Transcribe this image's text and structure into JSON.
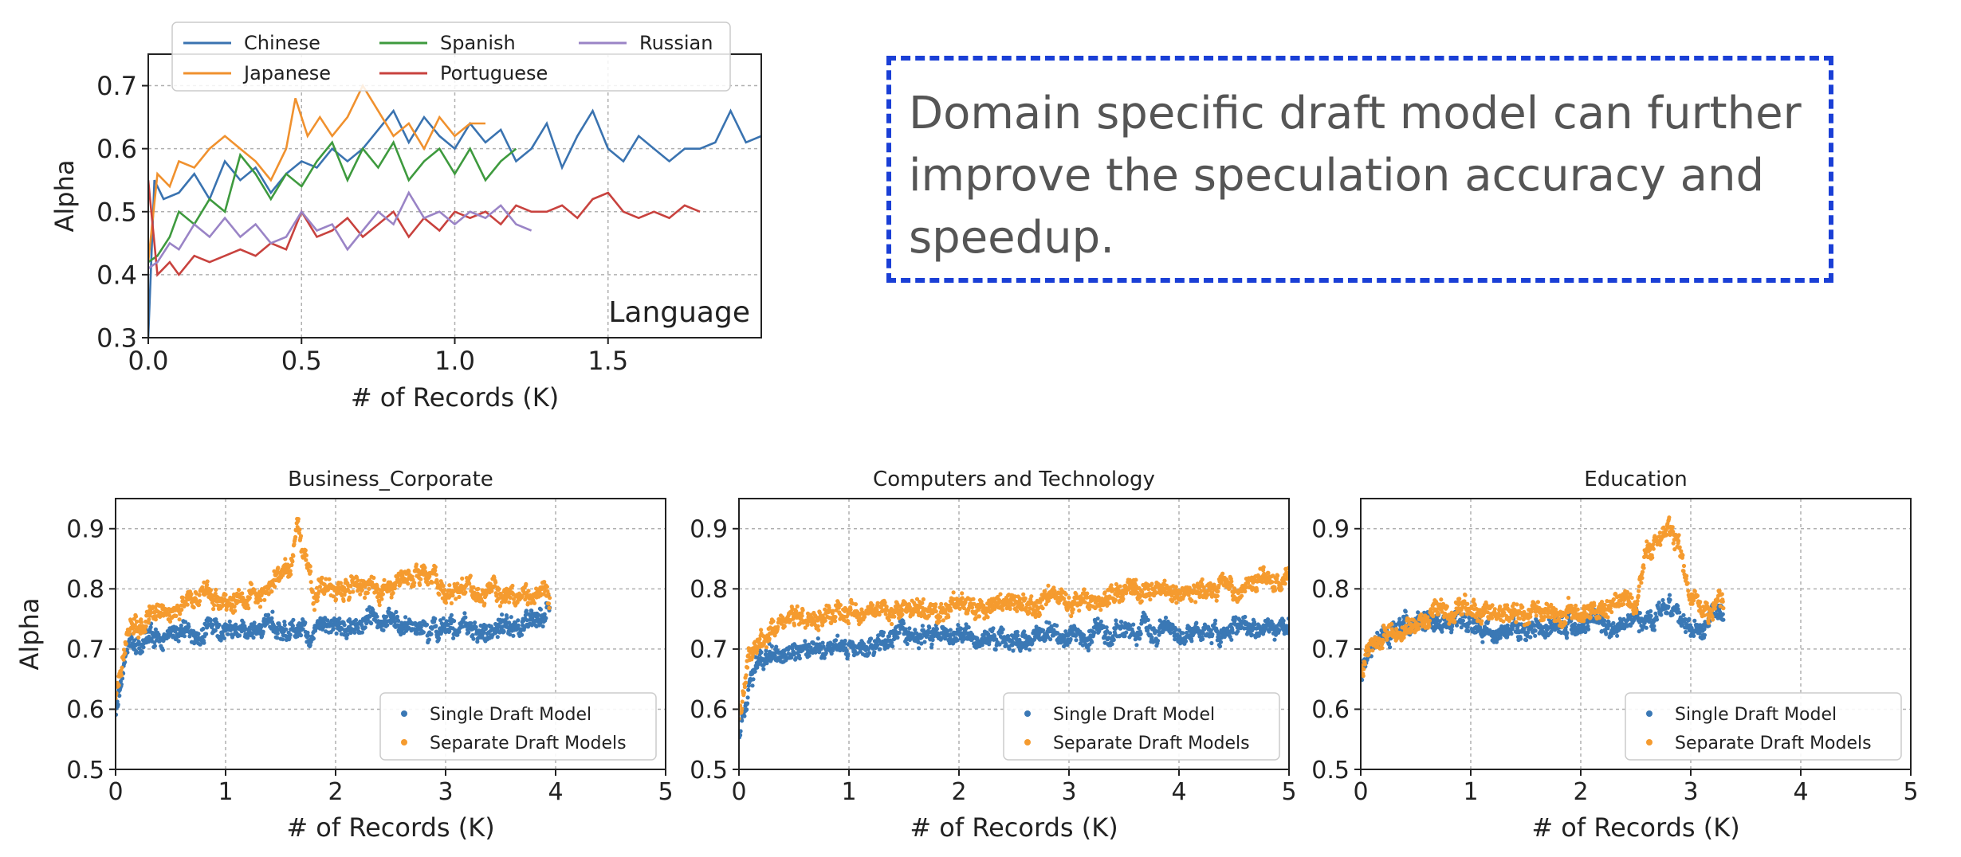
{
  "callout": {
    "text": "Domain specific draft model can further improve the speculation accuracy and speedup."
  },
  "colors": {
    "chinese": "#3a73b0",
    "japanese": "#f0912e",
    "spanish": "#3e9a3e",
    "portuguese": "#c8423e",
    "russian": "#9a84c6",
    "single": "#3a78b5",
    "separate": "#f59b2f",
    "callout_border": "#1a3fd6"
  },
  "chart_data": [
    {
      "type": "line",
      "label": "Language",
      "xlabel": "# of Records (K)",
      "ylabel": "Alpha",
      "xlim": [
        0,
        2.0
      ],
      "ylim": [
        0.3,
        0.75
      ],
      "xticks": [
        "0.0",
        "0.5",
        "1.0",
        "1.5"
      ],
      "xtick_values": [
        0,
        0.5,
        1.0,
        1.5
      ],
      "yticks": [
        "0.3",
        "0.4",
        "0.5",
        "0.6",
        "0.7"
      ],
      "ytick_values": [
        0.3,
        0.4,
        0.5,
        0.6,
        0.7
      ],
      "grid": true,
      "legend_position": "top",
      "series": [
        {
          "name": "Chinese",
          "color": "#3a73b0",
          "x": [
            0.0,
            0.02,
            0.05,
            0.1,
            0.15,
            0.2,
            0.25,
            0.3,
            0.35,
            0.4,
            0.45,
            0.5,
            0.55,
            0.6,
            0.65,
            0.7,
            0.75,
            0.8,
            0.85,
            0.9,
            0.95,
            1.0,
            1.05,
            1.1,
            1.15,
            1.2,
            1.25,
            1.3,
            1.35,
            1.4,
            1.45,
            1.5,
            1.55,
            1.6,
            1.65,
            1.7,
            1.75,
            1.8,
            1.85,
            1.9,
            1.95,
            2.0
          ],
          "y": [
            0.3,
            0.55,
            0.52,
            0.53,
            0.56,
            0.52,
            0.58,
            0.55,
            0.57,
            0.53,
            0.56,
            0.58,
            0.57,
            0.6,
            0.58,
            0.6,
            0.63,
            0.66,
            0.61,
            0.65,
            0.62,
            0.6,
            0.64,
            0.61,
            0.63,
            0.58,
            0.6,
            0.64,
            0.57,
            0.62,
            0.66,
            0.6,
            0.58,
            0.62,
            0.6,
            0.58,
            0.6,
            0.6,
            0.61,
            0.66,
            0.61,
            0.62
          ]
        },
        {
          "name": "Japanese",
          "color": "#f0912e",
          "x": [
            0.0,
            0.03,
            0.07,
            0.1,
            0.15,
            0.2,
            0.25,
            0.3,
            0.35,
            0.4,
            0.45,
            0.48,
            0.52,
            0.56,
            0.6,
            0.65,
            0.7,
            0.75,
            0.8,
            0.85,
            0.9,
            0.95,
            1.0,
            1.05,
            1.1
          ],
          "y": [
            0.42,
            0.56,
            0.54,
            0.58,
            0.57,
            0.6,
            0.62,
            0.6,
            0.58,
            0.55,
            0.6,
            0.68,
            0.62,
            0.65,
            0.62,
            0.65,
            0.7,
            0.66,
            0.62,
            0.64,
            0.6,
            0.65,
            0.62,
            0.64,
            0.64
          ]
        },
        {
          "name": "Spanish",
          "color": "#3e9a3e",
          "x": [
            0.0,
            0.03,
            0.07,
            0.1,
            0.15,
            0.2,
            0.25,
            0.3,
            0.35,
            0.4,
            0.45,
            0.5,
            0.55,
            0.6,
            0.65,
            0.7,
            0.75,
            0.8,
            0.85,
            0.9,
            0.95,
            1.0,
            1.05,
            1.1,
            1.15,
            1.2
          ],
          "y": [
            0.42,
            0.43,
            0.46,
            0.5,
            0.48,
            0.52,
            0.5,
            0.59,
            0.56,
            0.52,
            0.56,
            0.54,
            0.58,
            0.61,
            0.55,
            0.6,
            0.57,
            0.61,
            0.55,
            0.58,
            0.6,
            0.56,
            0.6,
            0.55,
            0.58,
            0.6
          ]
        },
        {
          "name": "Portuguese",
          "color": "#c8423e",
          "x": [
            0.0,
            0.03,
            0.07,
            0.1,
            0.15,
            0.2,
            0.25,
            0.3,
            0.35,
            0.4,
            0.45,
            0.5,
            0.55,
            0.6,
            0.65,
            0.7,
            0.75,
            0.8,
            0.85,
            0.9,
            0.95,
            1.0,
            1.05,
            1.1,
            1.15,
            1.2,
            1.25,
            1.3,
            1.35,
            1.4,
            1.45,
            1.5,
            1.55,
            1.6,
            1.65,
            1.7,
            1.75,
            1.8
          ],
          "y": [
            0.55,
            0.4,
            0.42,
            0.4,
            0.43,
            0.42,
            0.43,
            0.44,
            0.43,
            0.45,
            0.44,
            0.5,
            0.46,
            0.47,
            0.49,
            0.46,
            0.48,
            0.5,
            0.46,
            0.49,
            0.47,
            0.5,
            0.49,
            0.5,
            0.48,
            0.51,
            0.5,
            0.5,
            0.51,
            0.49,
            0.52,
            0.53,
            0.5,
            0.49,
            0.5,
            0.49,
            0.51,
            0.5
          ]
        },
        {
          "name": "Russian",
          "color": "#9a84c6",
          "x": [
            0.0,
            0.03,
            0.07,
            0.1,
            0.15,
            0.2,
            0.25,
            0.3,
            0.35,
            0.4,
            0.45,
            0.5,
            0.55,
            0.6,
            0.65,
            0.7,
            0.75,
            0.8,
            0.85,
            0.9,
            0.95,
            1.0,
            1.05,
            1.1,
            1.15,
            1.2,
            1.25
          ],
          "y": [
            0.41,
            0.42,
            0.45,
            0.44,
            0.48,
            0.46,
            0.49,
            0.46,
            0.48,
            0.45,
            0.46,
            0.5,
            0.47,
            0.48,
            0.44,
            0.47,
            0.5,
            0.48,
            0.53,
            0.49,
            0.5,
            0.48,
            0.5,
            0.49,
            0.51,
            0.48,
            0.47
          ]
        }
      ]
    },
    {
      "type": "scatter",
      "title": "Business_Corporate",
      "xlabel": "# of Records (K)",
      "ylabel": "Alpha",
      "xlim": [
        0,
        5
      ],
      "ylim": [
        0.5,
        0.95
      ],
      "xticks": [
        "0",
        "1",
        "2",
        "3",
        "4",
        "5"
      ],
      "xtick_values": [
        0,
        1,
        2,
        3,
        4,
        5
      ],
      "yticks": [
        "0.5",
        "0.6",
        "0.7",
        "0.8",
        "0.9"
      ],
      "ytick_values": [
        0.5,
        0.6,
        0.7,
        0.8,
        0.9
      ],
      "grid": true,
      "legend_position": "bottom-right",
      "series": [
        {
          "name": "Single Draft Model",
          "color": "#3a78b5",
          "x": [
            0.0,
            0.1,
            0.3,
            0.5,
            0.8,
            1.0,
            1.2,
            1.4,
            1.6,
            1.8,
            2.0,
            2.2,
            2.4,
            2.6,
            2.8,
            3.0,
            3.2,
            3.4,
            3.6,
            3.8,
            3.95
          ],
          "y": [
            0.6,
            0.7,
            0.72,
            0.72,
            0.73,
            0.73,
            0.73,
            0.74,
            0.74,
            0.73,
            0.74,
            0.74,
            0.75,
            0.75,
            0.73,
            0.74,
            0.73,
            0.73,
            0.74,
            0.74,
            0.76
          ]
        },
        {
          "name": "Separate Draft Models",
          "color": "#f59b2f",
          "x": [
            0.0,
            0.1,
            0.3,
            0.5,
            0.8,
            1.0,
            1.2,
            1.4,
            1.6,
            1.65,
            1.8,
            2.0,
            2.2,
            2.4,
            2.6,
            2.8,
            3.0,
            3.2,
            3.4,
            3.6,
            3.8,
            3.95
          ],
          "y": [
            0.62,
            0.73,
            0.75,
            0.77,
            0.79,
            0.78,
            0.79,
            0.8,
            0.84,
            0.92,
            0.8,
            0.8,
            0.81,
            0.8,
            0.82,
            0.82,
            0.8,
            0.8,
            0.79,
            0.79,
            0.79,
            0.78
          ]
        }
      ]
    },
    {
      "type": "scatter",
      "title": "Computers and Technology",
      "xlabel": "# of Records (K)",
      "ylabel": "",
      "xlim": [
        0,
        5
      ],
      "ylim": [
        0.5,
        0.95
      ],
      "xticks": [
        "0",
        "1",
        "2",
        "3",
        "4",
        "5"
      ],
      "xtick_values": [
        0,
        1,
        2,
        3,
        4,
        5
      ],
      "yticks": [
        "0.5",
        "0.6",
        "0.7",
        "0.8",
        "0.9"
      ],
      "ytick_values": [
        0.5,
        0.6,
        0.7,
        0.8,
        0.9
      ],
      "grid": true,
      "legend_position": "bottom-right",
      "series": [
        {
          "name": "Single Draft Model",
          "color": "#3a78b5",
          "x": [
            0.0,
            0.1,
            0.3,
            0.5,
            0.8,
            1.0,
            1.3,
            1.6,
            2.0,
            2.3,
            2.6,
            3.0,
            3.3,
            3.6,
            4.0,
            4.3,
            4.6,
            5.0
          ],
          "y": [
            0.56,
            0.66,
            0.7,
            0.7,
            0.71,
            0.71,
            0.71,
            0.72,
            0.72,
            0.72,
            0.72,
            0.73,
            0.73,
            0.73,
            0.73,
            0.73,
            0.73,
            0.73
          ]
        },
        {
          "name": "Separate Draft Models",
          "color": "#f59b2f",
          "x": [
            0.0,
            0.1,
            0.3,
            0.5,
            0.8,
            1.0,
            1.3,
            1.6,
            2.0,
            2.3,
            2.6,
            3.0,
            3.3,
            3.6,
            4.0,
            4.3,
            4.6,
            5.0
          ],
          "y": [
            0.6,
            0.7,
            0.73,
            0.75,
            0.75,
            0.76,
            0.76,
            0.76,
            0.77,
            0.77,
            0.77,
            0.78,
            0.78,
            0.79,
            0.79,
            0.8,
            0.81,
            0.82
          ]
        }
      ]
    },
    {
      "type": "scatter",
      "title": "Education",
      "xlabel": "# of Records (K)",
      "ylabel": "",
      "xlim": [
        0,
        5
      ],
      "ylim": [
        0.5,
        0.95
      ],
      "xticks": [
        "0",
        "1",
        "2",
        "3",
        "4",
        "5"
      ],
      "xtick_values": [
        0,
        1,
        2,
        3,
        4,
        5
      ],
      "yticks": [
        "0.5",
        "0.6",
        "0.7",
        "0.8",
        "0.9"
      ],
      "ytick_values": [
        0.5,
        0.6,
        0.7,
        0.8,
        0.9
      ],
      "grid": true,
      "legend_position": "bottom-right",
      "series": [
        {
          "name": "Single Draft Model",
          "color": "#3a78b5",
          "x": [
            0.0,
            0.1,
            0.3,
            0.5,
            0.8,
            1.0,
            1.3,
            1.6,
            2.0,
            2.3,
            2.5,
            2.7,
            2.8,
            2.9,
            3.0,
            3.1,
            3.2,
            3.3
          ],
          "y": [
            0.66,
            0.7,
            0.73,
            0.74,
            0.74,
            0.74,
            0.73,
            0.73,
            0.74,
            0.74,
            0.75,
            0.75,
            0.78,
            0.74,
            0.73,
            0.74,
            0.76,
            0.75
          ]
        },
        {
          "name": "Separate Draft Models",
          "color": "#f59b2f",
          "x": [
            0.0,
            0.1,
            0.3,
            0.5,
            0.8,
            1.0,
            1.3,
            1.6,
            2.0,
            2.3,
            2.5,
            2.6,
            2.7,
            2.8,
            2.9,
            3.0,
            3.1,
            3.2,
            3.3
          ],
          "y": [
            0.66,
            0.71,
            0.74,
            0.75,
            0.76,
            0.76,
            0.76,
            0.76,
            0.76,
            0.77,
            0.78,
            0.86,
            0.88,
            0.9,
            0.86,
            0.78,
            0.76,
            0.77,
            0.78
          ]
        }
      ]
    }
  ]
}
